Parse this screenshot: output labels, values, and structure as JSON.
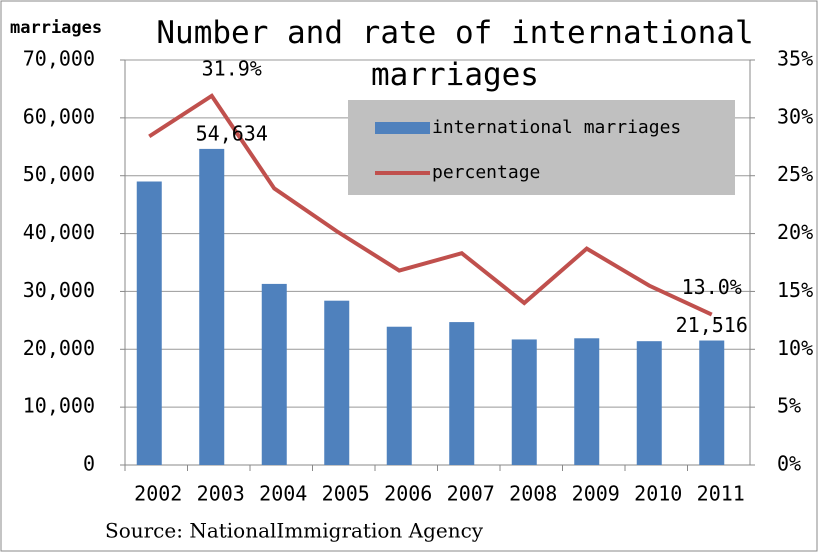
{
  "chart_data": {
    "type": "bar+line",
    "title": "Number and rate of international marriages",
    "y_axis_label": "marriages",
    "source": "Source: NationalImmigration Agency",
    "categories": [
      "2002",
      "2003",
      "2004",
      "2005",
      "2006",
      "2007",
      "2008",
      "2009",
      "2010",
      "2011"
    ],
    "series": [
      {
        "name": "international marriages",
        "type": "bar",
        "color": "#4f81bd",
        "values": [
          49000,
          54634,
          31300,
          28400,
          23900,
          24700,
          21700,
          21900,
          21400,
          21516
        ],
        "value_labels": [
          null,
          "54,634",
          null,
          null,
          null,
          null,
          null,
          null,
          null,
          "21,516"
        ]
      },
      {
        "name": "percentage",
        "type": "line",
        "axis": "y2",
        "color": "#c0504d",
        "values": [
          28.4,
          31.9,
          23.9,
          20.2,
          16.8,
          18.3,
          14.0,
          18.7,
          15.5,
          13.0
        ],
        "value_labels": [
          null,
          "31.9%",
          null,
          null,
          null,
          null,
          null,
          null,
          null,
          "13.0%"
        ]
      }
    ],
    "ylim": [
      0,
      70000
    ],
    "yticks": [
      0,
      {
        "value": 10000,
        "label": "10,000"
      },
      {
        "value": 20000,
        "label": "20,000"
      },
      {
        "value": 30000,
        "label": "30,000"
      },
      {
        "value": 40000,
        "label": "40,000"
      },
      {
        "value": 50000,
        "label": "50,000"
      },
      {
        "value": 60000,
        "label": "60,000"
      },
      {
        "value": 70000,
        "label": "70,000"
      }
    ],
    "y2lim": [
      0,
      35
    ],
    "y2ticks": [
      {
        "value": 0,
        "label": "0%"
      },
      {
        "value": 5,
        "label": "5%"
      },
      {
        "value": 10,
        "label": "10%"
      },
      {
        "value": 15,
        "label": "15%"
      },
      {
        "value": 20,
        "label": "20%"
      },
      {
        "value": 25,
        "label": "25%"
      },
      {
        "value": 30,
        "label": "30%"
      },
      {
        "value": 35,
        "label": "35%"
      }
    ],
    "grid": true
  }
}
